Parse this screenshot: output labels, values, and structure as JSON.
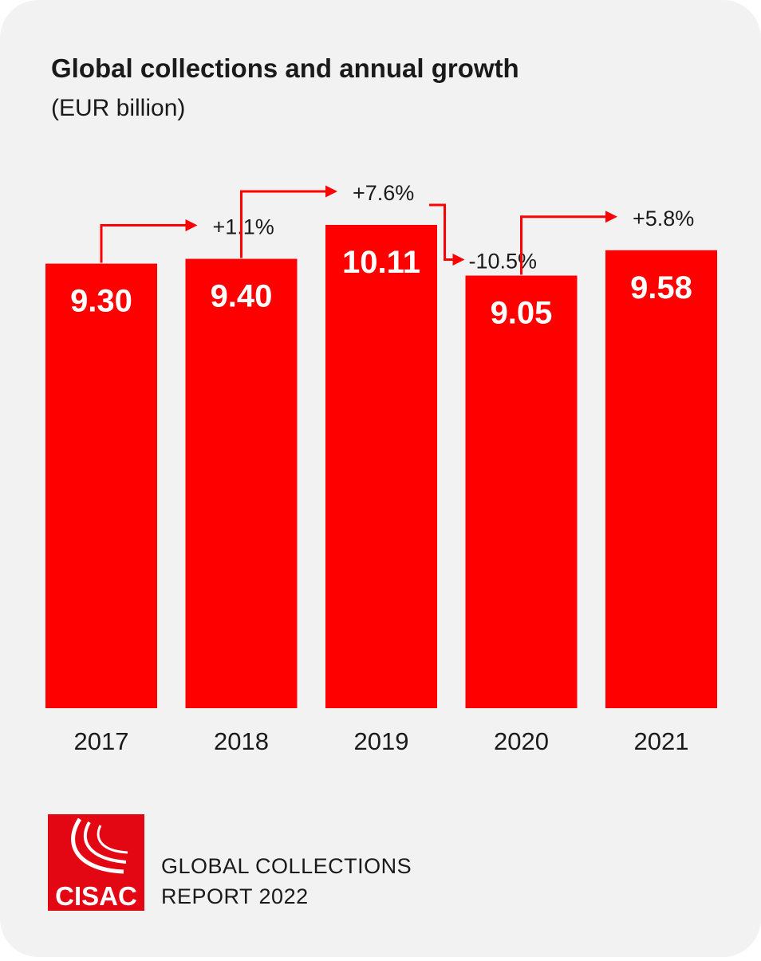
{
  "title": {
    "main": "Global collections and annual growth",
    "unit": "(EUR billion)"
  },
  "colors": {
    "bar": "#ff0000",
    "background": "#f2f2f2",
    "text": "#1a1a1a",
    "logo": "#e30613"
  },
  "chart_data": {
    "type": "bar",
    "title": "Global collections and annual growth (EUR billion)",
    "categories": [
      "2017",
      "2018",
      "2019",
      "2020",
      "2021"
    ],
    "values": [
      9.3,
      9.4,
      10.11,
      9.05,
      9.58
    ],
    "value_labels": [
      "9.30",
      "9.40",
      "10.11",
      "9.05",
      "9.58"
    ],
    "growth": [
      {
        "from": "2017",
        "to": "2018",
        "label": "+1.1%"
      },
      {
        "from": "2018",
        "to": "2019",
        "label": "+7.6%"
      },
      {
        "from": "2019",
        "to": "2020",
        "label": "-10.5%"
      },
      {
        "from": "2020",
        "to": "2021",
        "label": "+5.8%"
      }
    ],
    "xlabel": "",
    "ylabel": "",
    "ylim": [
      0,
      10.11
    ],
    "grid": false,
    "legend": "none"
  },
  "footer": {
    "logo_text": "CISAC",
    "report_line1": "GLOBAL COLLECTIONS",
    "report_line2": "REPORT 2022"
  }
}
